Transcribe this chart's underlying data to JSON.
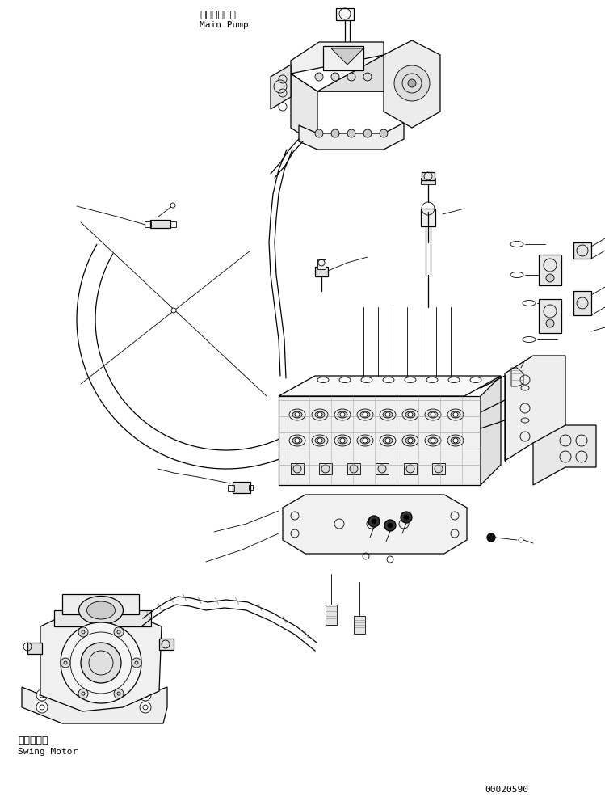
{
  "background_color": "#ffffff",
  "line_color": "#000000",
  "main_pump_label_jp": "メインポンプ",
  "main_pump_label_en": "Main Pump",
  "swing_motor_label_jp": "旋回モータ",
  "swing_motor_label_en": "Swing Motor",
  "part_number": "00020590",
  "figsize": [
    7.49,
    9.86
  ],
  "dpi": 100,
  "lw_thin": 0.6,
  "lw_med": 0.9,
  "lw_thick": 1.3
}
